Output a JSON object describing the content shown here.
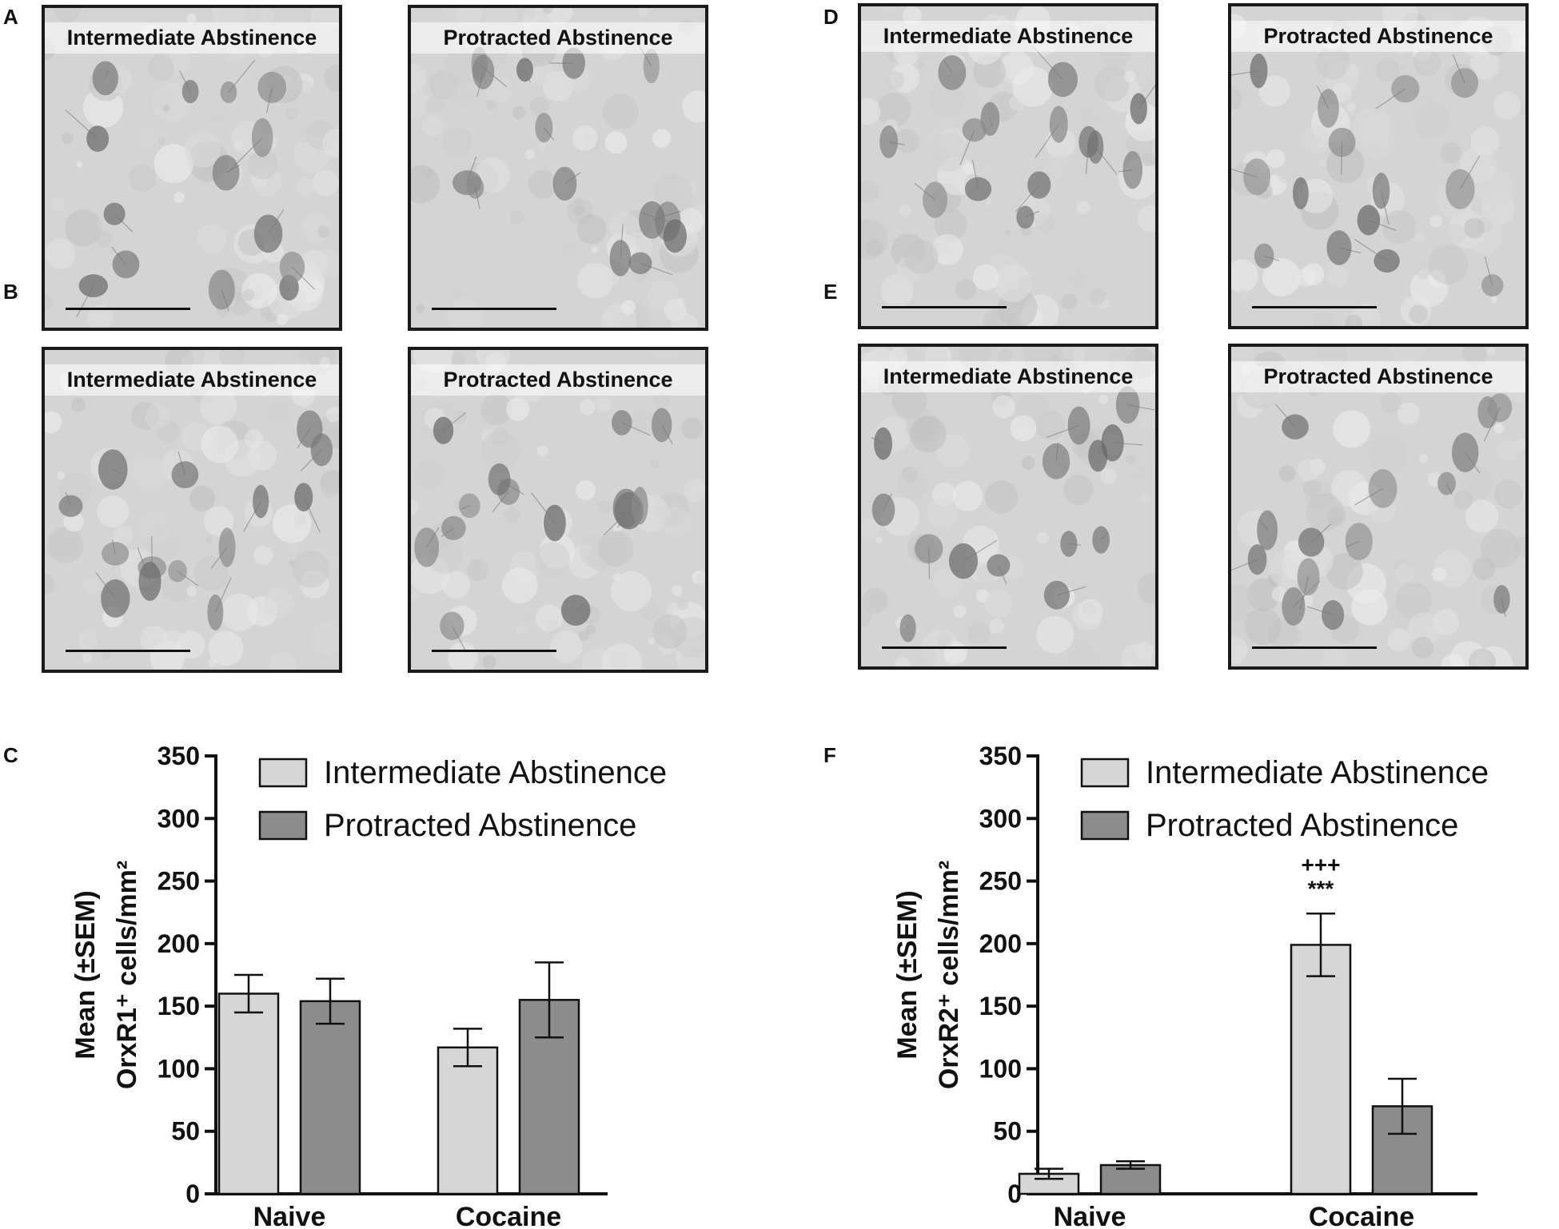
{
  "panels": {
    "A": {
      "letter": "A",
      "left_title": "Intermediate Abstinence",
      "right_title": "Protracted Abstinence"
    },
    "B": {
      "letter": "B",
      "left_title": "Intermediate Abstinence",
      "right_title": "Protracted Abstinence"
    },
    "D": {
      "letter": "D",
      "left_title": "Intermediate Abstinence",
      "right_title": "Protracted Abstinence"
    },
    "E": {
      "letter": "E",
      "left_title": "Intermediate Abstinence",
      "right_title": "Protracted Abstinence"
    },
    "C": {
      "letter": "C"
    },
    "F": {
      "letter": "F"
    }
  },
  "colors": {
    "intermediate": "#d6d6d6",
    "protracted": "#8c8c8c",
    "axis": "#111111"
  },
  "chart_data": [
    {
      "panel": "C",
      "type": "bar",
      "categories": [
        "Naive",
        "Cocaine"
      ],
      "series": [
        {
          "name": "Intermediate Abstinence",
          "values": [
            160,
            117
          ],
          "errors": [
            15,
            15
          ]
        },
        {
          "name": "Protracted Abstinence",
          "values": [
            154,
            155
          ],
          "errors": [
            18,
            30
          ]
        }
      ],
      "ylabel_line1": "Mean (±SEM)",
      "ylabel_line2": "OrxR1⁺ cells/mm²",
      "ylim": [
        0,
        350
      ],
      "yticks": [
        "0",
        "50",
        "100",
        "150",
        "200",
        "250",
        "300",
        "350"
      ],
      "legend_position": "top",
      "annotations": []
    },
    {
      "panel": "F",
      "type": "bar",
      "categories": [
        "Naive",
        "Cocaine"
      ],
      "series": [
        {
          "name": "Intermediate Abstinence",
          "values": [
            16,
            199
          ],
          "errors": [
            4,
            25
          ]
        },
        {
          "name": "Protracted Abstinence",
          "values": [
            23,
            70
          ],
          "errors": [
            3,
            22
          ]
        }
      ],
      "ylabel_line1": "Mean (±SEM)",
      "ylabel_line2": "OrxR2⁺ cells/mm²",
      "ylim": [
        0,
        350
      ],
      "yticks": [
        "0",
        "50",
        "100",
        "150",
        "200",
        "250",
        "300",
        "350"
      ],
      "legend_position": "top",
      "annotations": [
        {
          "text": "+++",
          "category": "Cocaine",
          "series": 0,
          "row": 0
        },
        {
          "text": "***",
          "category": "Cocaine",
          "series": 0,
          "row": 1
        }
      ]
    }
  ]
}
